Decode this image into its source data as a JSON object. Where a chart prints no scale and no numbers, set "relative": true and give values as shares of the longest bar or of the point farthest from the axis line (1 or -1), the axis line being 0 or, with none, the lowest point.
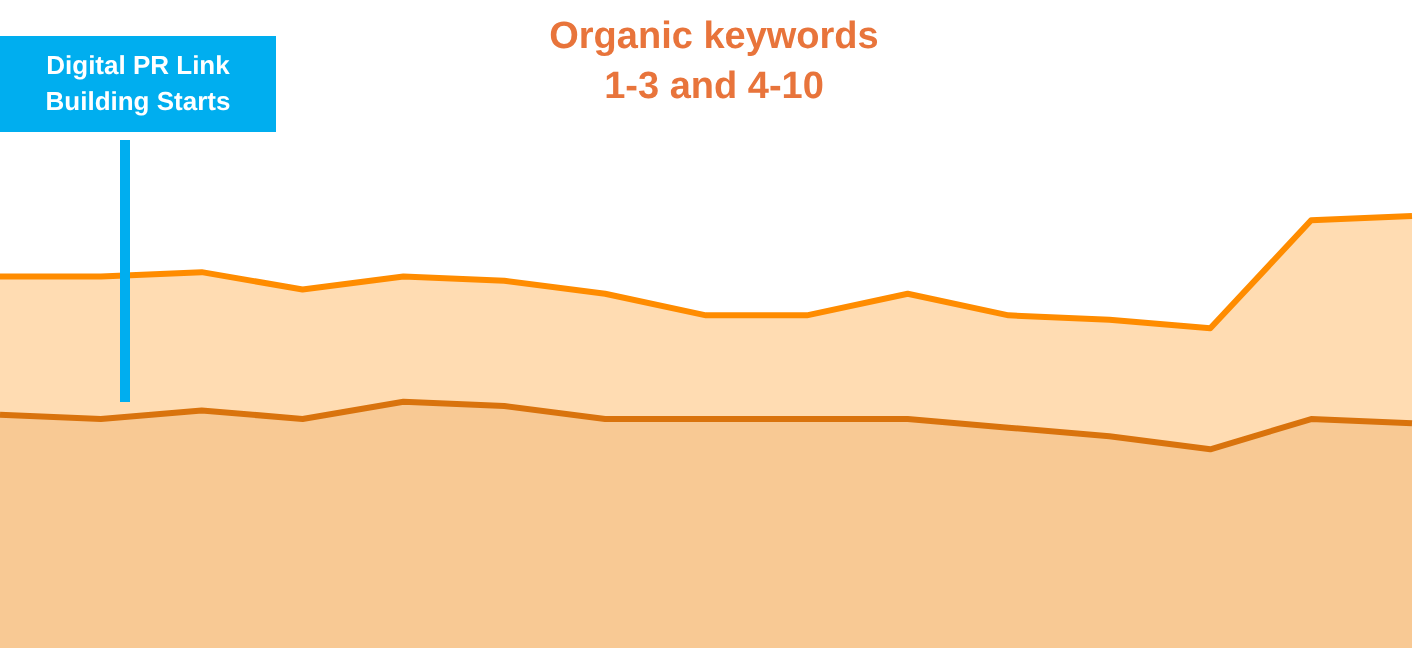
{
  "chart_data": {
    "type": "area",
    "title": "Organic keywords",
    "subtitle": "1-3 and 4-10",
    "relative": true,
    "annotations": [
      "Digital PR Link Building Starts"
    ],
    "categories": [
      null,
      null,
      null,
      null,
      null,
      null,
      null,
      null,
      null,
      null,
      null,
      null,
      null,
      null,
      null
    ],
    "series": [
      {
        "color": "#d9730d",
        "values": [
          0.54,
          0.53,
          0.55,
          0.53,
          0.57,
          0.56,
          0.53,
          0.53,
          0.53,
          0.53,
          0.51,
          0.49,
          0.46,
          0.53,
          0.52
        ]
      },
      {
        "color": "#ff8c00",
        "values": [
          0.86,
          0.86,
          0.87,
          0.83,
          0.86,
          0.85,
          0.82,
          0.77,
          0.77,
          0.82,
          0.77,
          0.76,
          0.74,
          0.99,
          1
        ]
      }
    ]
  }
}
